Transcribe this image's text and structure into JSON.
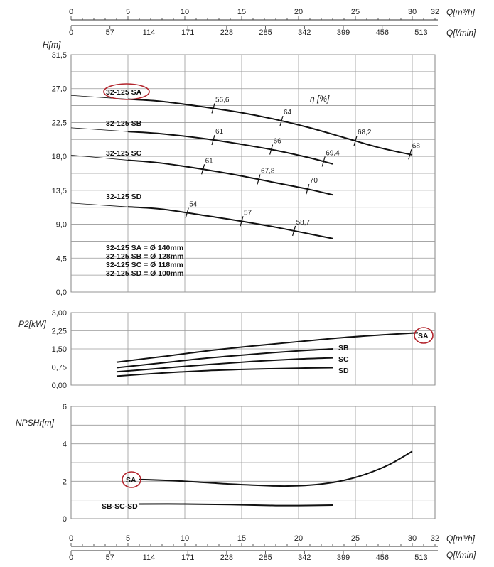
{
  "chart_data": {
    "type": "line",
    "x_axes": {
      "q_m3h": {
        "label": "Q[m³/h]",
        "range": [
          0,
          32
        ],
        "ticks": [
          "0",
          "5",
          "10",
          "15",
          "20",
          "25",
          "30",
          "32"
        ]
      },
      "q_lmin": {
        "label": "Q[l/min]",
        "ticks": [
          "0",
          "57",
          "114",
          "171",
          "228",
          "285",
          "342",
          "399",
          "456",
          "513"
        ]
      }
    },
    "panels": {
      "head": {
        "ylabel": "H[m]",
        "ylim": [
          0,
          31.5
        ],
        "yticks": [
          "0,0",
          "4,5",
          "9,0",
          "13,5",
          "18,0",
          "22,5",
          "27,0",
          "31,5"
        ],
        "efficiency_label": "η [%]",
        "series": [
          {
            "name": "32-125 SA",
            "x": [
              5,
              8,
              12,
              15,
              18,
              21,
              24,
              27,
              30
            ],
            "y": [
              25.6,
              25.3,
              24.5,
              23.8,
              22.9,
              21.8,
              20.5,
              19.2,
              18.2
            ]
          },
          {
            "name": "32-125 SB",
            "x": [
              5,
              8,
              12,
              15,
              18,
              21,
              23
            ],
            "y": [
              21.3,
              21.0,
              20.3,
              19.6,
              18.8,
              17.8,
              17.0
            ]
          },
          {
            "name": "32-125 SC",
            "x": [
              5,
              8,
              12,
              15,
              18,
              21,
              23
            ],
            "y": [
              17.5,
              17.1,
              16.2,
              15.4,
              14.5,
              13.6,
              12.9
            ]
          },
          {
            "name": "32-125 SD",
            "x": [
              5,
              8,
              12,
              15,
              18,
              21,
              23
            ],
            "y": [
              11.3,
              11.0,
              10.1,
              9.4,
              8.6,
              7.7,
              7.1
            ]
          }
        ],
        "series_labels": [
          "32-125 SA",
          "32-125 SB",
          "32-125 SC",
          "32-125 SD"
        ],
        "efficiency_marks": [
          {
            "label": "56,6",
            "x": 12.5,
            "series": 0
          },
          {
            "label": "64",
            "x": 18.5,
            "series": 0
          },
          {
            "label": "68,2",
            "x": 25,
            "series": 0
          },
          {
            "label": "68",
            "x": 29.8,
            "series": 0
          },
          {
            "label": "61",
            "x": 12.5,
            "series": 1
          },
          {
            "label": "66",
            "x": 17.6,
            "series": 1
          },
          {
            "label": "69,4",
            "x": 22.2,
            "series": 1
          },
          {
            "label": "61",
            "x": 11.6,
            "series": 2
          },
          {
            "label": "67,8",
            "x": 16.5,
            "series": 2
          },
          {
            "label": "70",
            "x": 20.8,
            "series": 2
          },
          {
            "label": "54",
            "x": 10.2,
            "series": 3
          },
          {
            "label": "57",
            "x": 15,
            "series": 3
          },
          {
            "label": "58,7",
            "x": 19.6,
            "series": 3
          }
        ],
        "legend": [
          "32-125 SA = Ø 140mm",
          "32-125 SB = Ø 128mm",
          "32-125 SC = Ø 118mm",
          "32-125 SD = Ø 100mm"
        ]
      },
      "power": {
        "ylabel": "P2[kW]",
        "ylim": [
          0,
          3
        ],
        "yticks": [
          "0,00",
          "0,75",
          "1,50",
          "2,25",
          "3,00"
        ],
        "series": [
          {
            "name": "SA",
            "x": [
              4,
              8,
              12,
              16,
              20,
              24,
              28,
              30.5
            ],
            "y": [
              0.95,
              1.18,
              1.42,
              1.62,
              1.8,
              1.97,
              2.1,
              2.17
            ]
          },
          {
            "name": "SB",
            "x": [
              4,
              8,
              12,
              16,
              20,
              23
            ],
            "y": [
              0.72,
              0.92,
              1.12,
              1.28,
              1.42,
              1.5
            ]
          },
          {
            "name": "SC",
            "x": [
              4,
              8,
              12,
              16,
              20,
              23
            ],
            "y": [
              0.55,
              0.7,
              0.85,
              0.98,
              1.08,
              1.13
            ]
          },
          {
            "name": "SD",
            "x": [
              4,
              8,
              12,
              16,
              20,
              23
            ],
            "y": [
              0.37,
              0.5,
              0.6,
              0.66,
              0.7,
              0.72
            ]
          }
        ],
        "series_labels": [
          "SA",
          "SB",
          "SC",
          "SD"
        ]
      },
      "npsh": {
        "ylabel": "NPSHr[m]",
        "ylim": [
          0,
          6
        ],
        "yticks": [
          "0",
          "2",
          "4",
          "6"
        ],
        "series": [
          {
            "name": "SA",
            "x": [
              6,
              10,
              14,
              18,
              20,
              22,
              24,
              26,
              28,
              30
            ],
            "y": [
              2.1,
              2.0,
              1.85,
              1.75,
              1.76,
              1.85,
              2.05,
              2.4,
              2.9,
              3.6
            ]
          },
          {
            "name": "SB-SC-SD",
            "x": [
              6,
              10,
              14,
              18,
              20,
              23
            ],
            "y": [
              0.78,
              0.78,
              0.75,
              0.7,
              0.7,
              0.72
            ]
          }
        ],
        "series_labels": [
          "SA",
          "SB-SC-SD"
        ]
      }
    }
  },
  "colors": {
    "highlight": "#b3262e",
    "curve": "#111111",
    "grid": "#9a9a9a"
  }
}
